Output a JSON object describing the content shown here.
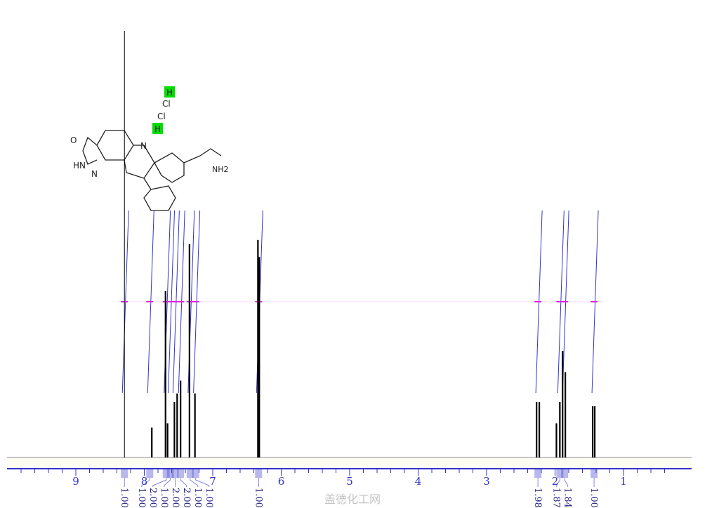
{
  "chart_data": {
    "type": "line",
    "title": "",
    "xlabel": "",
    "ylabel": "",
    "xlim": [
      10.0,
      0.3
    ],
    "x_reversed": true,
    "x_ticks": [
      "9",
      "8",
      "7",
      "6",
      "5",
      "4",
      "3",
      "2",
      "1"
    ],
    "grid": false,
    "peaks": [
      {
        "ppm": 8.29,
        "intensity": 1.0
      },
      {
        "ppm": 7.89,
        "intensity": 0.07
      },
      {
        "ppm": 7.69,
        "intensity": 0.39
      },
      {
        "ppm": 7.66,
        "intensity": 0.08
      },
      {
        "ppm": 7.56,
        "intensity": 0.13
      },
      {
        "ppm": 7.52,
        "intensity": 0.15
      },
      {
        "ppm": 7.47,
        "intensity": 0.18
      },
      {
        "ppm": 7.34,
        "intensity": 0.5
      },
      {
        "ppm": 7.26,
        "intensity": 0.15
      },
      {
        "ppm": 6.34,
        "intensity": 0.51
      },
      {
        "ppm": 6.32,
        "intensity": 0.47
      },
      {
        "ppm": 2.27,
        "intensity": 0.13
      },
      {
        "ppm": 2.23,
        "intensity": 0.13
      },
      {
        "ppm": 1.98,
        "intensity": 0.08
      },
      {
        "ppm": 1.93,
        "intensity": 0.13
      },
      {
        "ppm": 1.89,
        "intensity": 0.25
      },
      {
        "ppm": 1.85,
        "intensity": 0.2
      },
      {
        "ppm": 1.45,
        "intensity": 0.12
      },
      {
        "ppm": 1.42,
        "intensity": 0.12
      }
    ],
    "integrals": [
      {
        "ppm": 8.29,
        "label": "1.00"
      },
      {
        "ppm": 7.92,
        "label": "1.00"
      },
      {
        "ppm": 7.68,
        "label": "2.00"
      },
      {
        "ppm": 7.62,
        "label": "1.00"
      },
      {
        "ppm": 7.55,
        "label": "2.00"
      },
      {
        "ppm": 7.47,
        "label": "2.00"
      },
      {
        "ppm": 7.33,
        "label": "1.00"
      },
      {
        "ppm": 7.25,
        "label": "1.00"
      },
      {
        "ppm": 6.33,
        "label": "1.00"
      },
      {
        "ppm": 2.25,
        "label": "1.98"
      },
      {
        "ppm": 1.93,
        "label": "1.87"
      },
      {
        "ppm": 1.86,
        "label": "1.84"
      },
      {
        "ppm": 1.43,
        "label": "1.00"
      }
    ],
    "colors": {
      "spectrum": "#000000",
      "integral": "#3333cc",
      "axis": "#3333cc",
      "multiplet": "#e020e0",
      "highlight": "#00dd00"
    }
  },
  "molecule": {
    "labels": {
      "o": "O",
      "hn": "HN",
      "n1": "N",
      "n2": "N",
      "n3": "N",
      "cl1": "Cl",
      "cl2": "Cl",
      "h1": "H",
      "h2": "H",
      "nh2": "NH2"
    }
  },
  "watermark": "盖德化工网"
}
